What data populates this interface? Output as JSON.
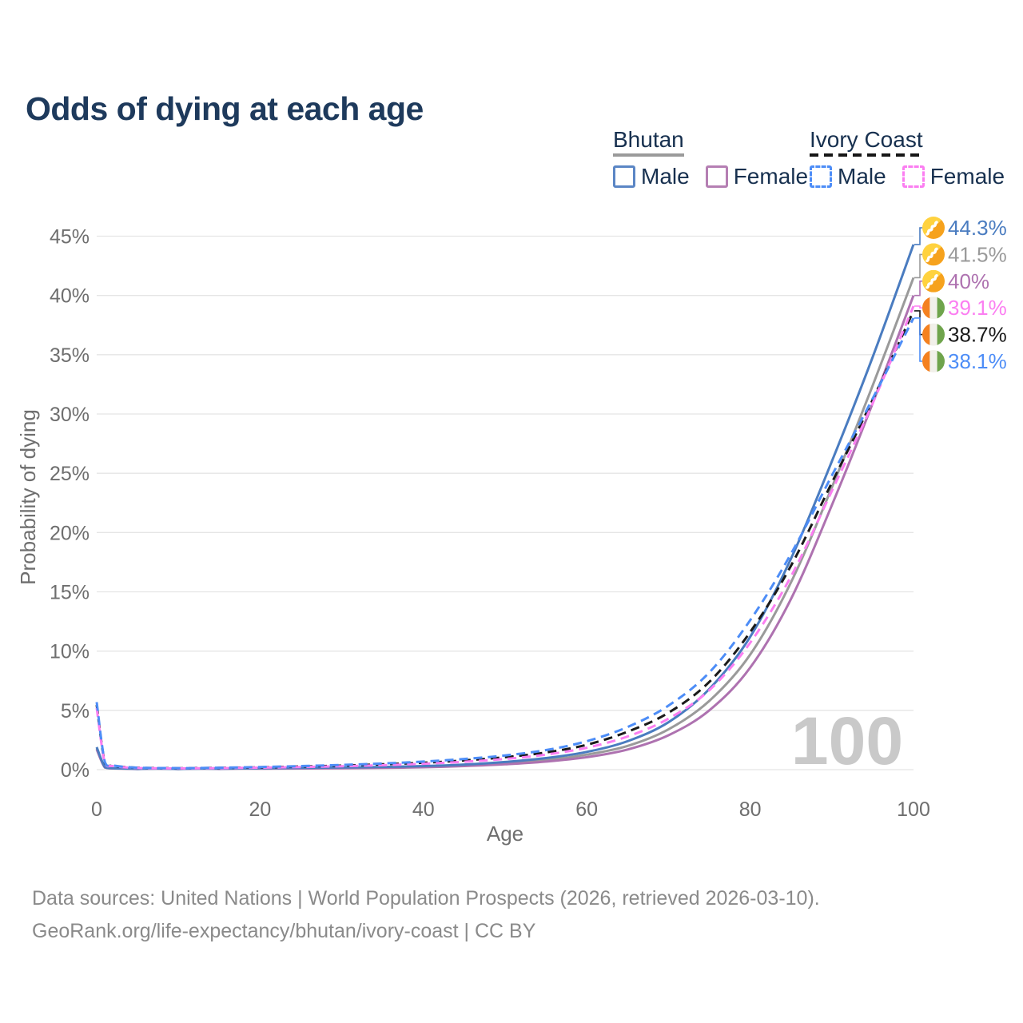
{
  "title": "Odds of dying at each age",
  "legend": {
    "groups": [
      {
        "name": "Bhutan",
        "line_style": "solid",
        "underline_color": "#9A9A9A",
        "items": [
          {
            "label": "Male",
            "color": "#5B86C5"
          },
          {
            "label": "Female",
            "color": "#B57FB3"
          }
        ]
      },
      {
        "name": "Ivory Coast",
        "line_style": "dashed",
        "underline_color": "#161616",
        "items": [
          {
            "label": "Male",
            "color": "#4D8DF7"
          },
          {
            "label": "Female",
            "color": "#FB7EF1"
          }
        ]
      }
    ]
  },
  "chart_data": {
    "type": "line",
    "title": "Odds of dying at each age",
    "xlabel": "Age",
    "ylabel": "Probability of dying",
    "xlim": [
      0,
      100
    ],
    "ylim": [
      0,
      45
    ],
    "grid": "horizontal",
    "legend_position": "top-right",
    "watermark": "100",
    "xticks": [
      {
        "v": 0,
        "label": "0"
      },
      {
        "v": 20,
        "label": "20"
      },
      {
        "v": 40,
        "label": "40"
      },
      {
        "v": 60,
        "label": "60"
      },
      {
        "v": 80,
        "label": "80"
      },
      {
        "v": 100,
        "label": "100"
      }
    ],
    "yticks": [
      {
        "v": 0,
        "label": "0%"
      },
      {
        "v": 5,
        "label": "5%"
      },
      {
        "v": 10,
        "label": "10%"
      },
      {
        "v": 15,
        "label": "15%"
      },
      {
        "v": 20,
        "label": "20%"
      },
      {
        "v": 25,
        "label": "25%"
      },
      {
        "v": 30,
        "label": "30%"
      },
      {
        "v": 35,
        "label": "35%"
      },
      {
        "v": 40,
        "label": "40%"
      },
      {
        "v": 45,
        "label": "45%"
      }
    ],
    "series": [
      {
        "name": "Bhutan Male",
        "country": "Bhutan",
        "sex": "Male",
        "color": "#4A7CC0",
        "dash": false,
        "end_label": "44.3%",
        "flag": "bhutan",
        "points": [
          [
            0,
            1.9
          ],
          [
            1,
            0.22
          ],
          [
            2,
            0.12
          ],
          [
            5,
            0.07
          ],
          [
            10,
            0.06
          ],
          [
            15,
            0.09
          ],
          [
            20,
            0.12
          ],
          [
            25,
            0.15
          ],
          [
            30,
            0.18
          ],
          [
            35,
            0.23
          ],
          [
            40,
            0.3
          ],
          [
            45,
            0.43
          ],
          [
            50,
            0.65
          ],
          [
            55,
            0.98
          ],
          [
            60,
            1.5
          ],
          [
            65,
            2.4
          ],
          [
            70,
            4.0
          ],
          [
            75,
            6.8
          ],
          [
            80,
            11.2
          ],
          [
            85,
            17.8
          ],
          [
            90,
            26.0
          ],
          [
            95,
            34.8
          ],
          [
            100,
            44.3
          ]
        ]
      },
      {
        "name": "Bhutan Both sexes",
        "country": "Bhutan",
        "sex": "Both sexes",
        "color": "#9A9A9A",
        "dash": false,
        "end_label": "41.5%",
        "flag": "bhutan",
        "points": [
          [
            0,
            1.8
          ],
          [
            1,
            0.2
          ],
          [
            2,
            0.11
          ],
          [
            5,
            0.06
          ],
          [
            10,
            0.06
          ],
          [
            15,
            0.08
          ],
          [
            20,
            0.1
          ],
          [
            25,
            0.12
          ],
          [
            30,
            0.15
          ],
          [
            35,
            0.19
          ],
          [
            40,
            0.25
          ],
          [
            45,
            0.36
          ],
          [
            50,
            0.55
          ],
          [
            55,
            0.82
          ],
          [
            60,
            1.27
          ],
          [
            65,
            2.0
          ],
          [
            70,
            3.4
          ],
          [
            75,
            5.8
          ],
          [
            80,
            9.7
          ],
          [
            85,
            15.8
          ],
          [
            90,
            23.8
          ],
          [
            95,
            32.4
          ],
          [
            100,
            41.5
          ]
        ]
      },
      {
        "name": "Bhutan Female",
        "country": "Bhutan",
        "sex": "Female",
        "color": "#AE72B0",
        "dash": false,
        "end_label": "40%",
        "flag": "bhutan",
        "points": [
          [
            0,
            1.7
          ],
          [
            1,
            0.18
          ],
          [
            2,
            0.1
          ],
          [
            5,
            0.05
          ],
          [
            10,
            0.05
          ],
          [
            15,
            0.06
          ],
          [
            20,
            0.08
          ],
          [
            25,
            0.1
          ],
          [
            30,
            0.12
          ],
          [
            35,
            0.15
          ],
          [
            40,
            0.2
          ],
          [
            45,
            0.3
          ],
          [
            50,
            0.45
          ],
          [
            55,
            0.68
          ],
          [
            60,
            1.05
          ],
          [
            65,
            1.7
          ],
          [
            70,
            2.9
          ],
          [
            75,
            5.0
          ],
          [
            80,
            8.6
          ],
          [
            85,
            14.4
          ],
          [
            90,
            22.3
          ],
          [
            95,
            30.9
          ],
          [
            100,
            40.0
          ]
        ]
      },
      {
        "name": "Ivory Coast Female",
        "country": "Ivory Coast",
        "sex": "Female",
        "color": "#FB7EF1",
        "dash": true,
        "end_label": "39.1%",
        "flag": "ivory-coast",
        "points": [
          [
            0,
            5.2
          ],
          [
            1,
            0.55
          ],
          [
            2,
            0.3
          ],
          [
            5,
            0.14
          ],
          [
            10,
            0.11
          ],
          [
            15,
            0.13
          ],
          [
            20,
            0.17
          ],
          [
            25,
            0.22
          ],
          [
            30,
            0.29
          ],
          [
            35,
            0.38
          ],
          [
            40,
            0.5
          ],
          [
            45,
            0.67
          ],
          [
            50,
            0.9
          ],
          [
            55,
            1.27
          ],
          [
            60,
            1.85
          ],
          [
            65,
            2.8
          ],
          [
            70,
            4.3
          ],
          [
            75,
            6.7
          ],
          [
            80,
            10.7
          ],
          [
            85,
            16.3
          ],
          [
            90,
            23.5
          ],
          [
            95,
            30.9
          ],
          [
            100,
            39.1
          ]
        ]
      },
      {
        "name": "Ivory Coast Both sexes",
        "country": "Ivory Coast",
        "sex": "Both sexes",
        "color": "#1A1A1A",
        "dash": true,
        "end_label": "38.7%",
        "flag": "ivory-coast",
        "points": [
          [
            0,
            5.45
          ],
          [
            1,
            0.6
          ],
          [
            2,
            0.32
          ],
          [
            5,
            0.16
          ],
          [
            10,
            0.12
          ],
          [
            15,
            0.15
          ],
          [
            20,
            0.19
          ],
          [
            25,
            0.26
          ],
          [
            30,
            0.34
          ],
          [
            35,
            0.45
          ],
          [
            40,
            0.58
          ],
          [
            45,
            0.78
          ],
          [
            50,
            1.05
          ],
          [
            55,
            1.45
          ],
          [
            60,
            2.1
          ],
          [
            65,
            3.2
          ],
          [
            70,
            4.8
          ],
          [
            75,
            7.4
          ],
          [
            80,
            11.6
          ],
          [
            85,
            17.2
          ],
          [
            90,
            24.2
          ],
          [
            95,
            31.2
          ],
          [
            100,
            38.7
          ]
        ]
      },
      {
        "name": "Ivory Coast Male",
        "country": "Ivory Coast",
        "sex": "Male",
        "color": "#4D8DF7",
        "dash": true,
        "end_label": "38.1%",
        "flag": "ivory-coast",
        "points": [
          [
            0,
            5.7
          ],
          [
            1,
            0.65
          ],
          [
            2,
            0.35
          ],
          [
            5,
            0.17
          ],
          [
            10,
            0.13
          ],
          [
            15,
            0.16
          ],
          [
            20,
            0.22
          ],
          [
            25,
            0.3
          ],
          [
            30,
            0.4
          ],
          [
            35,
            0.52
          ],
          [
            40,
            0.68
          ],
          [
            45,
            0.9
          ],
          [
            50,
            1.2
          ],
          [
            55,
            1.65
          ],
          [
            60,
            2.4
          ],
          [
            65,
            3.6
          ],
          [
            70,
            5.4
          ],
          [
            75,
            8.2
          ],
          [
            80,
            12.6
          ],
          [
            85,
            18.2
          ],
          [
            90,
            24.8
          ],
          [
            95,
            31.3
          ],
          [
            100,
            38.1
          ]
        ]
      }
    ]
  },
  "footer": {
    "line1": "Data sources: United Nations | World Population Prospects (2026, retrieved 2026-03-10).",
    "line2": "GeoRank.org/life-expectancy/bhutan/ivory-coast | CC BY"
  }
}
